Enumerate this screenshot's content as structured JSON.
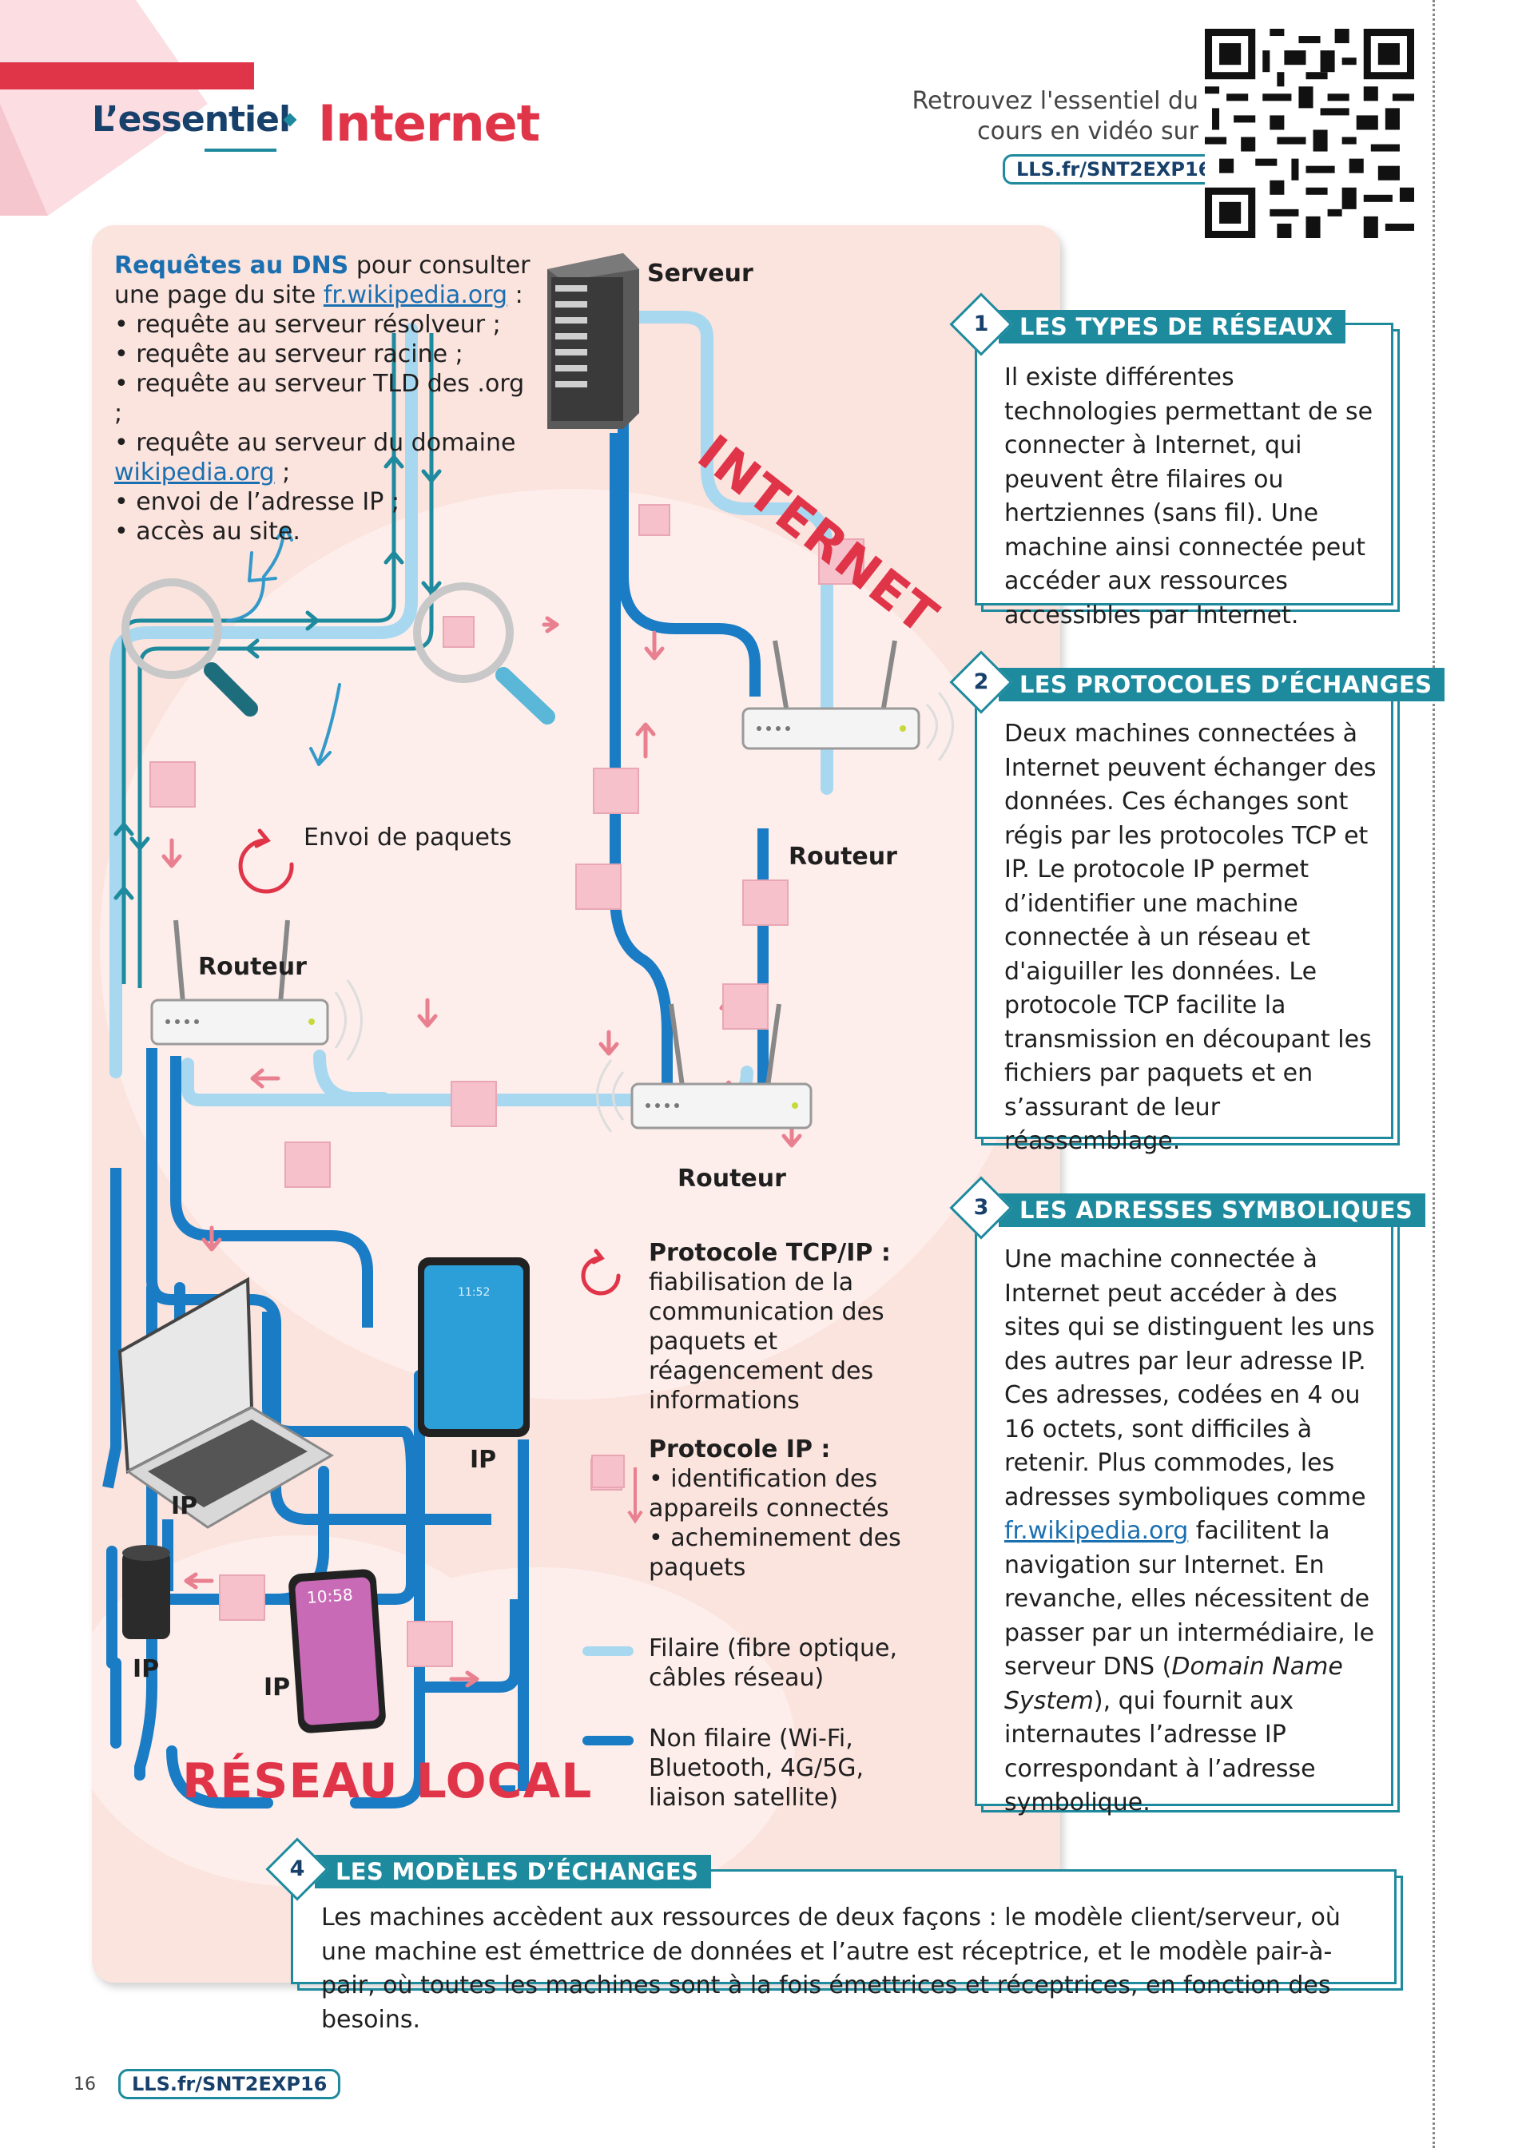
{
  "header": {
    "section": "L’essentiel",
    "title": "Internet",
    "video_text": "Retrouvez l'essentiel du cours en vidéo sur",
    "video_link": "LLS.fr/SNT2EXP16"
  },
  "diagram": {
    "dns_title": "Requêtes au DNS",
    "dns_intro": " pour consulter une page du site ",
    "dns_site": "fr.wikipedia.org",
    "dns_colon": " :",
    "dns_items": [
      "• requête au serveur résolveur ;",
      "• requête au serveur racine ;",
      "• requête au serveur TLD des .org ;",
      "• requête au serveur du domaine "
    ],
    "dns_domain": "wikipedia.org",
    "dns_domain_suffix": " ;",
    "dns_items_end": [
      "• envoi de l’adresse IP ;",
      "• accès au site."
    ],
    "server_label": "Serveur",
    "internet_label": "INTERNET",
    "router_labels": [
      "Routeur",
      "Routeur",
      "Routeur"
    ],
    "packets_label": "Envoi de paquets",
    "ip_labels": [
      "IP",
      "IP",
      "IP",
      "IP"
    ],
    "local_label": "RÉSEAU LOCAL",
    "phone_time": "10:58",
    "tablet_time": "11:52"
  },
  "legend": {
    "tcp_title": "Protocole TCP/IP :",
    "tcp_text": "fiabilisation de la communication des paquets et réagencement des informations",
    "ip_title": "Protocole IP :",
    "ip_items": [
      "• identification des appareils connectés",
      "• acheminement des paquets"
    ],
    "wired": "Filaire (fibre optique, câbles réseau)",
    "wireless": "Non filaire (Wi-Fi, Bluetooth, 4G/5G, liaison satellite)"
  },
  "boxes": [
    {
      "num": "1",
      "title": "LES TYPES DE RÉSEAUX",
      "text": "Il existe différentes technologies permettant de se connecter à Internet, qui peuvent être filaires ou hertziennes (sans fil). Une machine ainsi connectée peut accéder aux ressources accessibles par Internet."
    },
    {
      "num": "2",
      "title": "LES PROTOCOLES D’ÉCHANGES",
      "text": "Deux machines connectées à Internet peuvent échanger des données. Ces échanges sont régis par les protocoles TCP et IP. Le protocole IP permet d’identifier une machine connectée à un réseau et d'aiguiller les données. Le protocole TCP facilite la transmission en découpant les fichiers par paquets et en s’assurant de leur réassemblage."
    },
    {
      "num": "3",
      "title": "LES ADRESSES SYMBOLIQUES",
      "text_before": "Une machine connectée à Internet peut accéder à des sites qui se distinguent les uns des autres par leur adresse IP. Ces adresses, codées en 4 ou 16 octets, sont difficiles à retenir. Plus commodes, les adresses symboliques comme ",
      "link": "fr.wikipedia.org",
      "text_middle": " facilitent la navigation sur Internet. En revanche, elles nécessitent de passer par un intermédiaire, le serveur DNS (",
      "text_italic": "Domain Name System",
      "text_after": "), qui fournit aux internautes l’adresse IP correspondant à l’adresse symbolique."
    },
    {
      "num": "4",
      "title": "LES MODÈLES D’ÉCHANGES",
      "text": "Les machines accèdent aux ressources de deux façons : le modèle client/serveur, où une machine est émettrice de données et l’autre est réceptrice, et le modèle pair-à-pair, où toutes les machines sont à la fois émettrices et réceptrices, en fonction des besoins."
    }
  ],
  "footer": {
    "page_number": "16",
    "link": "LLS.fr/SNT2EXP16"
  },
  "colors": {
    "accent_red": "#e03448",
    "teal": "#1e8a9e",
    "navy": "#17406b",
    "panel_pink": "#fbe3de",
    "wired_line": "#a8d8f0",
    "wireless_line": "#1a7cc4"
  }
}
